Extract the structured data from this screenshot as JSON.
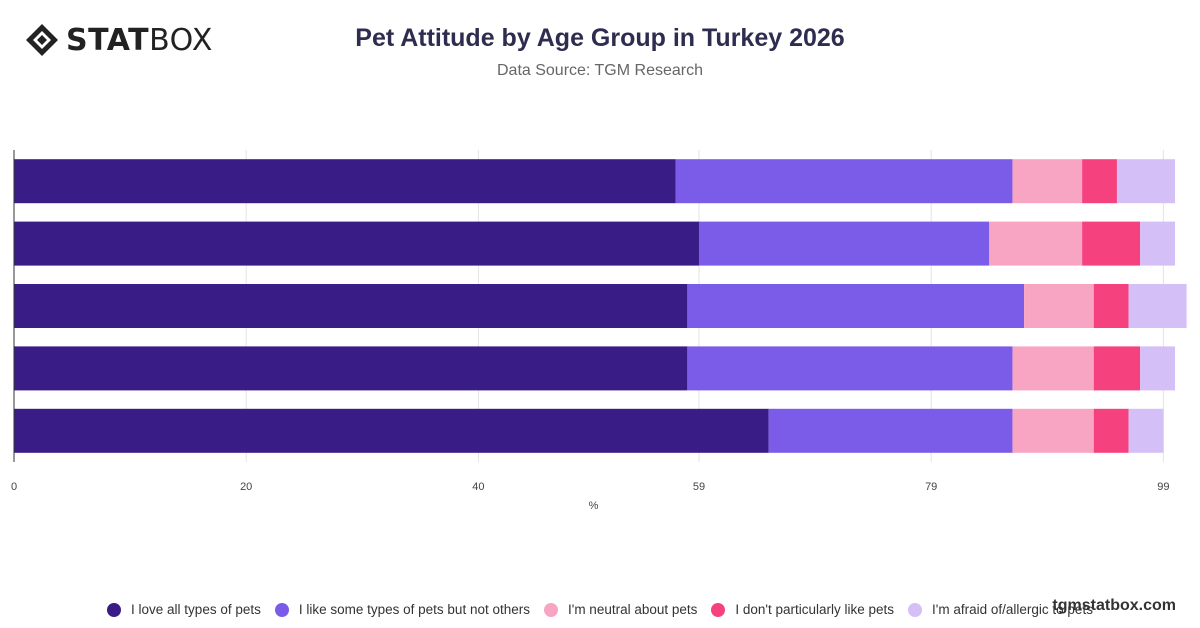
{
  "header": {
    "logo_bold": "STAT",
    "logo_light": "BOX",
    "title": "Pet Attitude by Age Group in Turkey 2026",
    "subtitle": "Data Source: TGM Research"
  },
  "watermark": "tgmstatbox.com",
  "chart_data": {
    "type": "bar",
    "orientation": "horizontal",
    "stacked": true,
    "title": "Pet Attitude by Age Group in Turkey 2026",
    "xlabel": "%",
    "ylabel": "",
    "xlim": [
      0,
      100
    ],
    "xticks": [
      "0",
      "20",
      "40",
      "59",
      "79",
      "99"
    ],
    "categories": [
      "",
      "",
      "",
      "",
      ""
    ],
    "series": [
      {
        "name": "I love all types of pets",
        "color": "#3a1c87",
        "values": [
          57,
          59,
          58,
          58,
          65
        ]
      },
      {
        "name": "I like some types of pets but not others",
        "color": "#7b5ce8",
        "values": [
          29,
          25,
          29,
          28,
          21
        ]
      },
      {
        "name": "I'm neutral about pets",
        "color": "#f8a5c3",
        "values": [
          6,
          8,
          6,
          7,
          7
        ]
      },
      {
        "name": "I don't particularly like pets",
        "color": "#f5427f",
        "values": [
          3,
          5,
          3,
          4,
          3
        ]
      },
      {
        "name": "I'm afraid of/allergic to pets",
        "color": "#d4bff7",
        "values": [
          5,
          3,
          5,
          3,
          3
        ]
      }
    ],
    "grid": true,
    "legend_position": "bottom"
  }
}
